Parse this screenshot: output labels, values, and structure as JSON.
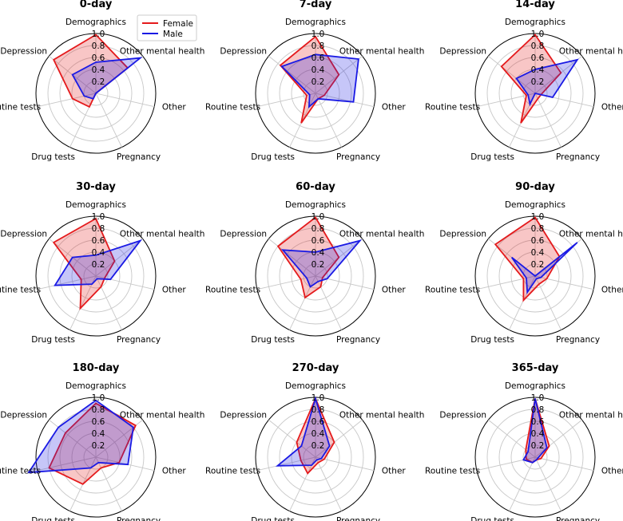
{
  "chart_data": {
    "type": "radar",
    "axes": [
      "Demographics",
      "Other mental health",
      "Other",
      "Pregnancy",
      "Drug tests",
      "Routine tests",
      "Depression"
    ],
    "rlim": [
      0,
      1.0
    ],
    "rticks": [
      "0.2",
      "0.4",
      "0.6",
      "0.8",
      "1.0"
    ],
    "legend": {
      "position": "top-right of first panel",
      "entries": [
        {
          "name": "Female",
          "color": "#e41a1c"
        },
        {
          "name": "Male",
          "color": "#1a1ae4"
        }
      ]
    },
    "colors": {
      "female": "#e41a1c",
      "male": "#1a1ae4"
    },
    "panels": [
      {
        "title": "0-day",
        "series": [
          {
            "name": "Female",
            "values": [
              0.98,
              0.68,
              0.0,
              0.0,
              0.25,
              0.4,
              0.9
            ]
          },
          {
            "name": "Male",
            "values": [
              0.52,
              0.95,
              0.0,
              0.0,
              0.1,
              0.2,
              0.5
            ]
          }
        ]
      },
      {
        "title": "7-day",
        "series": [
          {
            "name": "Female",
            "values": [
              0.95,
              0.5,
              0.15,
              0.1,
              0.55,
              0.15,
              0.75
            ]
          },
          {
            "name": "Male",
            "values": [
              0.65,
              0.92,
              0.65,
              0.1,
              0.25,
              0.1,
              0.72
            ]
          }
        ]
      },
      {
        "title": "14-day",
        "series": [
          {
            "name": "Female",
            "values": [
              0.98,
              0.55,
              0.1,
              0.1,
              0.55,
              0.15,
              0.72
            ]
          },
          {
            "name": "Male",
            "values": [
              0.4,
              0.9,
              0.3,
              0.0,
              0.2,
              0.12,
              0.4
            ]
          }
        ]
      },
      {
        "title": "30-day",
        "series": [
          {
            "name": "Female",
            "values": [
              0.96,
              0.4,
              0.15,
              0.2,
              0.6,
              0.25,
              0.9
            ]
          },
          {
            "name": "Male",
            "values": [
              0.35,
              0.95,
              0.25,
              0.05,
              0.15,
              0.7,
              0.5
            ]
          }
        ]
      },
      {
        "title": "60-day",
        "series": [
          {
            "name": "Female",
            "values": [
              0.98,
              0.5,
              0.12,
              0.2,
              0.4,
              0.25,
              0.8
            ]
          },
          {
            "name": "Male",
            "values": [
              0.4,
              0.95,
              0.2,
              0.1,
              0.2,
              0.15,
              0.7
            ]
          }
        ]
      },
      {
        "title": "90-day",
        "series": [
          {
            "name": "Female",
            "values": [
              0.98,
              0.52,
              0.2,
              0.15,
              0.45,
              0.2,
              0.85
            ]
          },
          {
            "name": "Male",
            "values": [
              0.0,
              0.9,
              0.1,
              0.05,
              0.3,
              0.15,
              0.5
            ]
          }
        ]
      },
      {
        "title": "180-day",
        "series": [
          {
            "name": "Female",
            "values": [
              0.9,
              0.85,
              0.4,
              0.2,
              0.5,
              0.8,
              0.65
            ]
          },
          {
            "name": "Male",
            "values": [
              0.95,
              0.8,
              0.55,
              0.1,
              0.2,
              1.15,
              0.8
            ]
          }
        ]
      },
      {
        "title": "270-day",
        "series": [
          {
            "name": "Female",
            "values": [
              0.98,
              0.4,
              0.15,
              0.1,
              0.3,
              0.25,
              0.4
            ]
          },
          {
            "name": "Male",
            "values": [
              0.98,
              0.3,
              0.1,
              0.05,
              0.15,
              0.65,
              0.3
            ]
          }
        ]
      },
      {
        "title": "365-day",
        "series": [
          {
            "name": "Female",
            "values": [
              0.98,
              0.3,
              0.1,
              0.05,
              0.1,
              0.15,
              0.2
            ]
          },
          {
            "name": "Male",
            "values": [
              0.98,
              0.25,
              0.05,
              0.05,
              0.1,
              0.2,
              0.15
            ]
          }
        ]
      }
    ]
  }
}
